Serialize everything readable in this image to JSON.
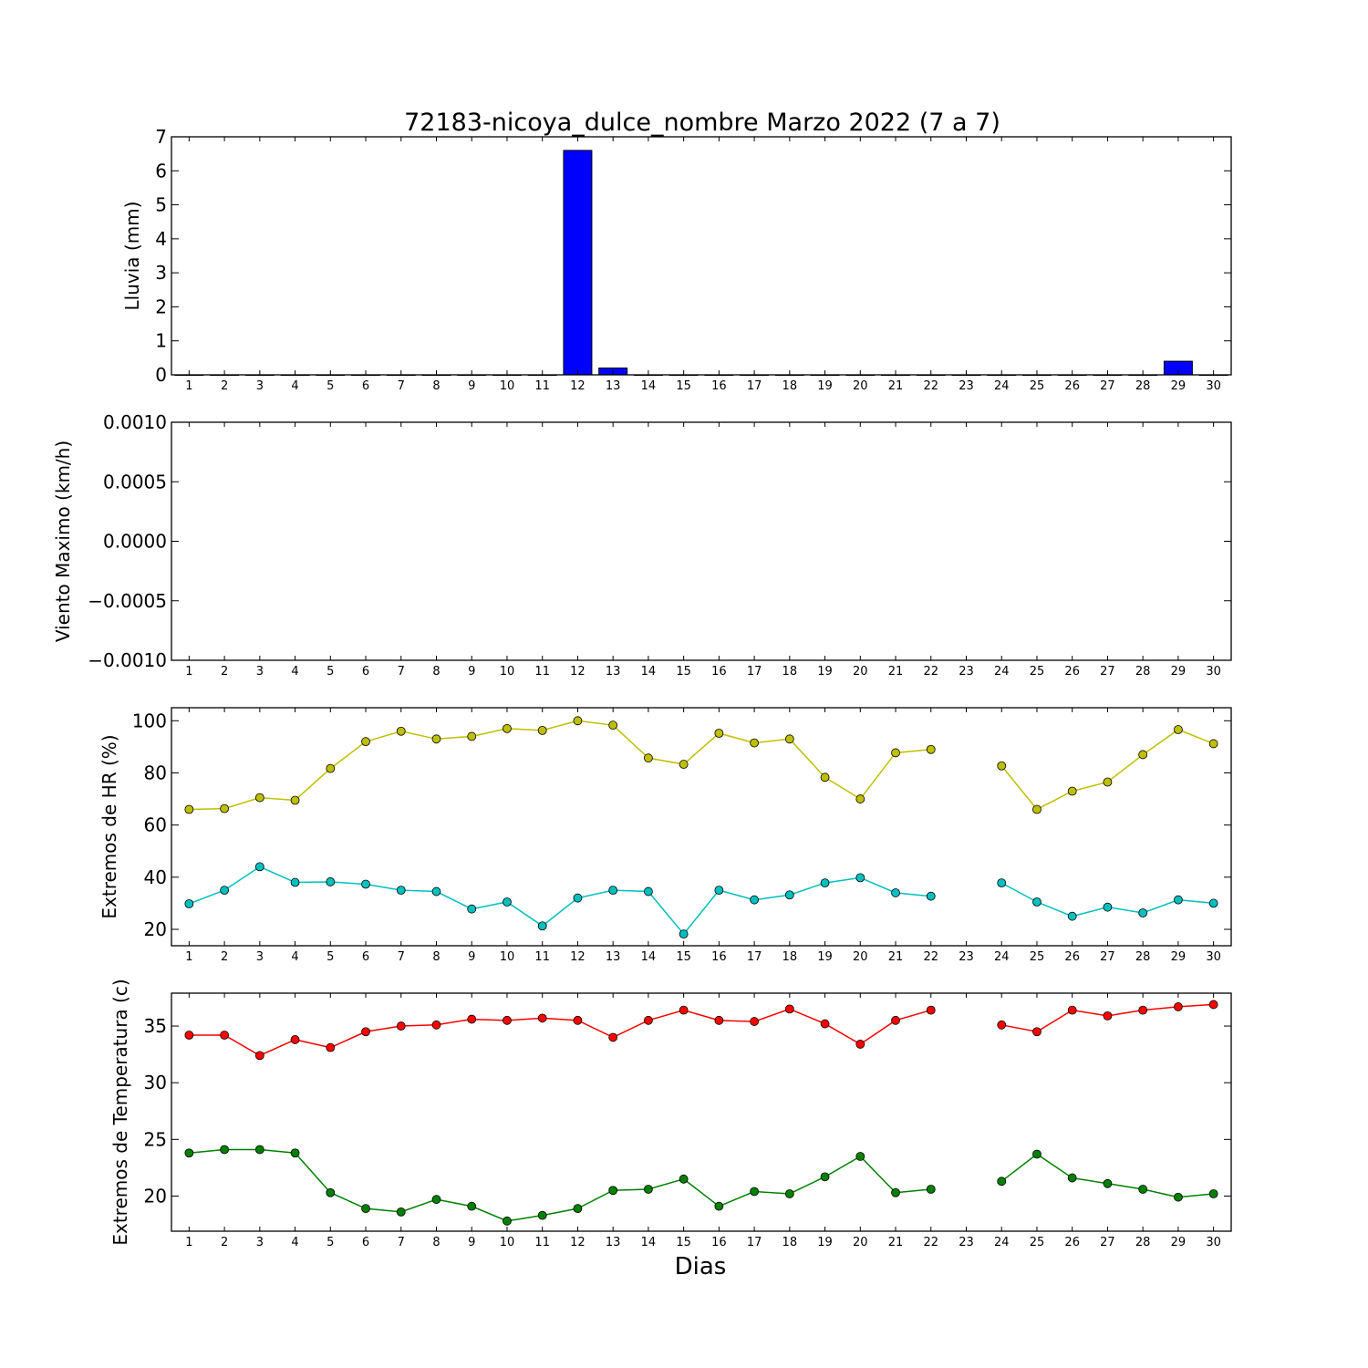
{
  "chart_data": [
    {
      "type": "bar",
      "title": "72183-nicoya_dulce_nombre Marzo 2022  (7 a 7)",
      "ylabel": "Lluvia (mm)",
      "categories": [
        1,
        2,
        3,
        4,
        5,
        6,
        7,
        8,
        9,
        10,
        11,
        12,
        13,
        14,
        15,
        16,
        17,
        18,
        19,
        20,
        21,
        22,
        23,
        24,
        25,
        26,
        27,
        28,
        29,
        30
      ],
      "x_ticks": [
        "1",
        "2",
        "3",
        "4",
        "5",
        "6",
        "7",
        "8",
        "9",
        "10",
        "11",
        "12",
        "13",
        "14",
        "15",
        "16",
        "17",
        "18",
        "19",
        "20",
        "21",
        "22",
        "23",
        "24",
        "25",
        "26",
        "27",
        "28",
        "29",
        "30"
      ],
      "values": [
        0,
        0,
        0,
        0,
        0,
        0,
        0,
        0,
        0,
        0,
        0,
        6.6,
        0.2,
        0,
        0,
        0,
        0,
        0,
        0,
        0,
        0,
        0,
        0,
        0,
        0,
        0,
        0,
        0,
        0.4,
        0
      ],
      "ylim": [
        0,
        7
      ],
      "y_ticks": [
        "0",
        "1",
        "2",
        "3",
        "4",
        "5",
        "6",
        "7"
      ],
      "color": "#0000ff"
    },
    {
      "type": "line",
      "ylabel": "Viento Maximo (km/h)",
      "x_ticks": [
        "1",
        "2",
        "3",
        "4",
        "5",
        "6",
        "7",
        "8",
        "9",
        "10",
        "11",
        "12",
        "13",
        "14",
        "15",
        "16",
        "17",
        "18",
        "19",
        "20",
        "21",
        "22",
        "23",
        "24",
        "25",
        "26",
        "27",
        "28",
        "29",
        "30"
      ],
      "series": [],
      "ylim": [
        -0.001,
        0.001
      ],
      "y_ticks": [
        "−0.0010",
        "−0.0005",
        "0.0000",
        "0.0005",
        "0.0010"
      ]
    },
    {
      "type": "line",
      "ylabel": "Extremos de HR (%)",
      "x": [
        1,
        2,
        3,
        4,
        5,
        6,
        7,
        8,
        9,
        10,
        11,
        12,
        13,
        14,
        15,
        16,
        17,
        18,
        19,
        20,
        21,
        22,
        23,
        24,
        25,
        26,
        27,
        28,
        29,
        30
      ],
      "x_ticks": [
        "1",
        "2",
        "3",
        "4",
        "5",
        "6",
        "7",
        "8",
        "9",
        "10",
        "11",
        "12",
        "13",
        "14",
        "15",
        "16",
        "17",
        "18",
        "19",
        "20",
        "21",
        "22",
        "23",
        "24",
        "25",
        "26",
        "27",
        "28",
        "29",
        "30"
      ],
      "series": [
        {
          "color": "#bfbf00",
          "values": [
            66,
            66.3,
            70.5,
            69.5,
            81.7,
            92,
            96,
            93,
            94,
            97,
            96.3,
            100,
            98.3,
            85.7,
            83.3,
            95.2,
            91.5,
            93,
            78.3,
            70,
            87.7,
            89,
            null,
            82.7,
            66,
            73,
            76.5,
            87,
            96.6,
            91.2
          ]
        },
        {
          "color": "#00bfbf",
          "values": [
            29.8,
            35,
            44,
            38,
            38.2,
            37.3,
            35,
            34.5,
            27.8,
            30.5,
            21.3,
            32,
            35,
            34.5,
            18.2,
            35,
            31.3,
            33.2,
            37.8,
            39.8,
            34,
            32.7,
            null,
            37.8,
            30.5,
            25,
            28.5,
            26.3,
            31.3,
            30
          ]
        }
      ],
      "ylim": [
        13.7,
        105
      ],
      "y_ticks": [
        "20",
        "40",
        "60",
        "80",
        "100"
      ]
    },
    {
      "type": "line",
      "ylabel": "Extremos de Temperatura (c)",
      "xlabel": "Dias",
      "x": [
        1,
        2,
        3,
        4,
        5,
        6,
        7,
        8,
        9,
        10,
        11,
        12,
        13,
        14,
        15,
        16,
        17,
        18,
        19,
        20,
        21,
        22,
        23,
        24,
        25,
        26,
        27,
        28,
        29,
        30
      ],
      "x_ticks": [
        "1",
        "2",
        "3",
        "4",
        "5",
        "6",
        "7",
        "8",
        "9",
        "10",
        "11",
        "12",
        "13",
        "14",
        "15",
        "16",
        "17",
        "18",
        "19",
        "20",
        "21",
        "22",
        "23",
        "24",
        "25",
        "26",
        "27",
        "28",
        "29",
        "30"
      ],
      "series": [
        {
          "color": "#ff0000",
          "values": [
            34.2,
            34.2,
            32.4,
            33.8,
            33.1,
            34.5,
            35,
            35.1,
            35.6,
            35.5,
            35.7,
            35.5,
            34,
            35.5,
            36.4,
            35.5,
            35.4,
            36.5,
            35.2,
            33.4,
            35.5,
            36.4,
            null,
            35.1,
            34.5,
            36.4,
            35.9,
            36.4,
            36.7,
            36.9
          ]
        },
        {
          "color": "#008000",
          "values": [
            23.8,
            24.1,
            24.1,
            23.8,
            20.3,
            18.9,
            18.6,
            19.7,
            19.1,
            17.8,
            18.3,
            18.9,
            20.5,
            20.6,
            21.5,
            19.1,
            20.4,
            20.2,
            21.7,
            23.5,
            20.3,
            20.6,
            null,
            21.3,
            23.7,
            21.6,
            21.1,
            20.6,
            19.9,
            20.2
          ]
        }
      ],
      "ylim": [
        16.9,
        37.9
      ],
      "y_ticks": [
        "20",
        "25",
        "30",
        "35"
      ]
    }
  ]
}
